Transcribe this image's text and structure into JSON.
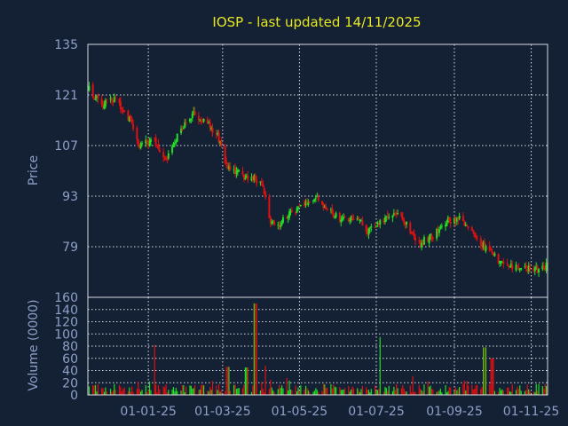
{
  "chart_data": [
    {
      "type": "candlestick",
      "title": "IOSP - last updated 14/11/2025",
      "ylabel": "Price",
      "ylim": [
        65,
        135
      ],
      "y_ticks": [
        "135",
        "121",
        "107",
        "93",
        "79"
      ],
      "x_ticks": [
        "01-01-25",
        "01-03-25",
        "01-05-25",
        "01-07-25",
        "01-09-25",
        "01-11-25"
      ],
      "x_start": "2024-11-14",
      "x_end": "2025-11-14",
      "grid": true,
      "colors": {
        "up": "#22dd22",
        "down": "#dd1111",
        "grid": "#d8dce6",
        "background": "#142033",
        "title": "#e8e820",
        "text": "#8fa0c8"
      },
      "price_path": [
        [
          "2024-11-15",
          122.5
        ],
        [
          "2024-11-25",
          118.0
        ],
        [
          "2024-12-05",
          120.0
        ],
        [
          "2024-12-15",
          116.0
        ],
        [
          "2024-12-25",
          106.5
        ],
        [
          "2025-01-05",
          109.0
        ],
        [
          "2025-01-15",
          102.5
        ],
        [
          "2025-01-25",
          110.0
        ],
        [
          "2025-02-05",
          116.0
        ],
        [
          "2025-02-15",
          113.5
        ],
        [
          "2025-02-25",
          110.0
        ],
        [
          "2025-03-05",
          100.5
        ],
        [
          "2025-03-15",
          99.0
        ],
        [
          "2025-03-25",
          98.0
        ],
        [
          "2025-04-01",
          96.5
        ],
        [
          "2025-04-08",
          86.0
        ],
        [
          "2025-04-15",
          85.0
        ],
        [
          "2025-04-25",
          88.5
        ],
        [
          "2025-05-05",
          91.0
        ],
        [
          "2025-05-15",
          93.0
        ],
        [
          "2025-05-25",
          88.5
        ],
        [
          "2025-06-05",
          86.5
        ],
        [
          "2025-06-15",
          87.5
        ],
        [
          "2025-06-25",
          83.0
        ],
        [
          "2025-07-05",
          86.0
        ],
        [
          "2025-07-15",
          88.5
        ],
        [
          "2025-07-25",
          85.0
        ],
        [
          "2025-08-05",
          80.0
        ],
        [
          "2025-08-15",
          82.0
        ],
        [
          "2025-08-25",
          86.0
        ],
        [
          "2025-09-05",
          87.0
        ],
        [
          "2025-09-15",
          83.0
        ],
        [
          "2025-09-25",
          79.0
        ],
        [
          "2025-10-05",
          75.5
        ],
        [
          "2025-10-15",
          73.5
        ],
        [
          "2025-10-25",
          73.0
        ],
        [
          "2025-11-05",
          72.5
        ],
        [
          "2025-11-14",
          74.0
        ]
      ]
    },
    {
      "type": "bar",
      "ylabel": "Volume (0000)",
      "ylim": [
        0,
        160
      ],
      "y_ticks": [
        "160",
        "140",
        "120",
        "100",
        "80",
        "60",
        "40",
        "20",
        "0"
      ],
      "volume_spikes": [
        [
          "2025-01-05",
          82
        ],
        [
          "2025-03-05",
          46
        ],
        [
          "2025-03-20",
          45
        ],
        [
          "2025-03-27",
          150
        ],
        [
          "2025-04-05",
          48
        ],
        [
          "2025-07-05",
          95
        ],
        [
          "2025-09-25",
          78
        ],
        [
          "2025-10-01",
          60
        ]
      ]
    }
  ]
}
